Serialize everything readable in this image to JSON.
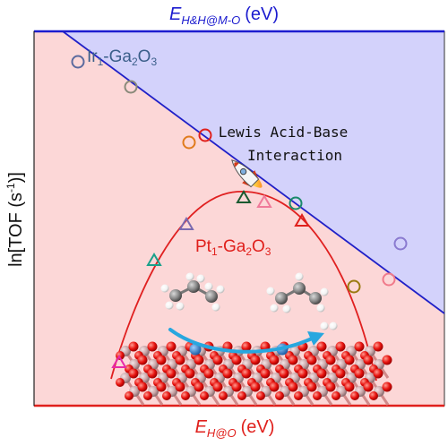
{
  "chart_data": {
    "type": "scatter",
    "title": "",
    "top_axis_label": {
      "main": "E",
      "sub": "H&H@M-O",
      "unit": "(eV)"
    },
    "xlabel": {
      "main": "E",
      "sub": "H@O",
      "unit": "(eV)"
    },
    "ylabel": {
      "pre": "ln[TOF (s",
      "sup": "-1",
      "post": ")]"
    },
    "grid": false,
    "annotation": [
      "Lewis Acid-Base",
      "Interaction"
    ],
    "series": [
      {
        "name": "Ir1-Ga2O3",
        "label_parts": {
          "a": "Ir",
          "a_sub": "1",
          "b": "-Ga",
          "b_sub": "2",
          "c": "O",
          "c_sub": "3"
        },
        "label_color": "#3b5f8a",
        "marker": "circle",
        "trend": "linear-decreasing"
      },
      {
        "name": "Pt1-Ga2O3",
        "label_parts": {
          "a": "Pt",
          "a_sub": "1",
          "b": "-Ga",
          "b_sub": "2",
          "c": "O",
          "c_sub": "3"
        },
        "label_color": "#e0201c",
        "marker": "triangle",
        "trend": "volcano"
      }
    ],
    "colors": {
      "upper_region": "#d3d2fb",
      "lower_region": "#fcd7d7",
      "top_axis": "#1c1ccf",
      "bottom_axis": "#e0201c",
      "ir_line": "#2020c8",
      "pt_curve": "#e02020",
      "arrow": "#27a7df",
      "oxygen": "#e8130f",
      "gallium": "#c9a6a8"
    }
  }
}
